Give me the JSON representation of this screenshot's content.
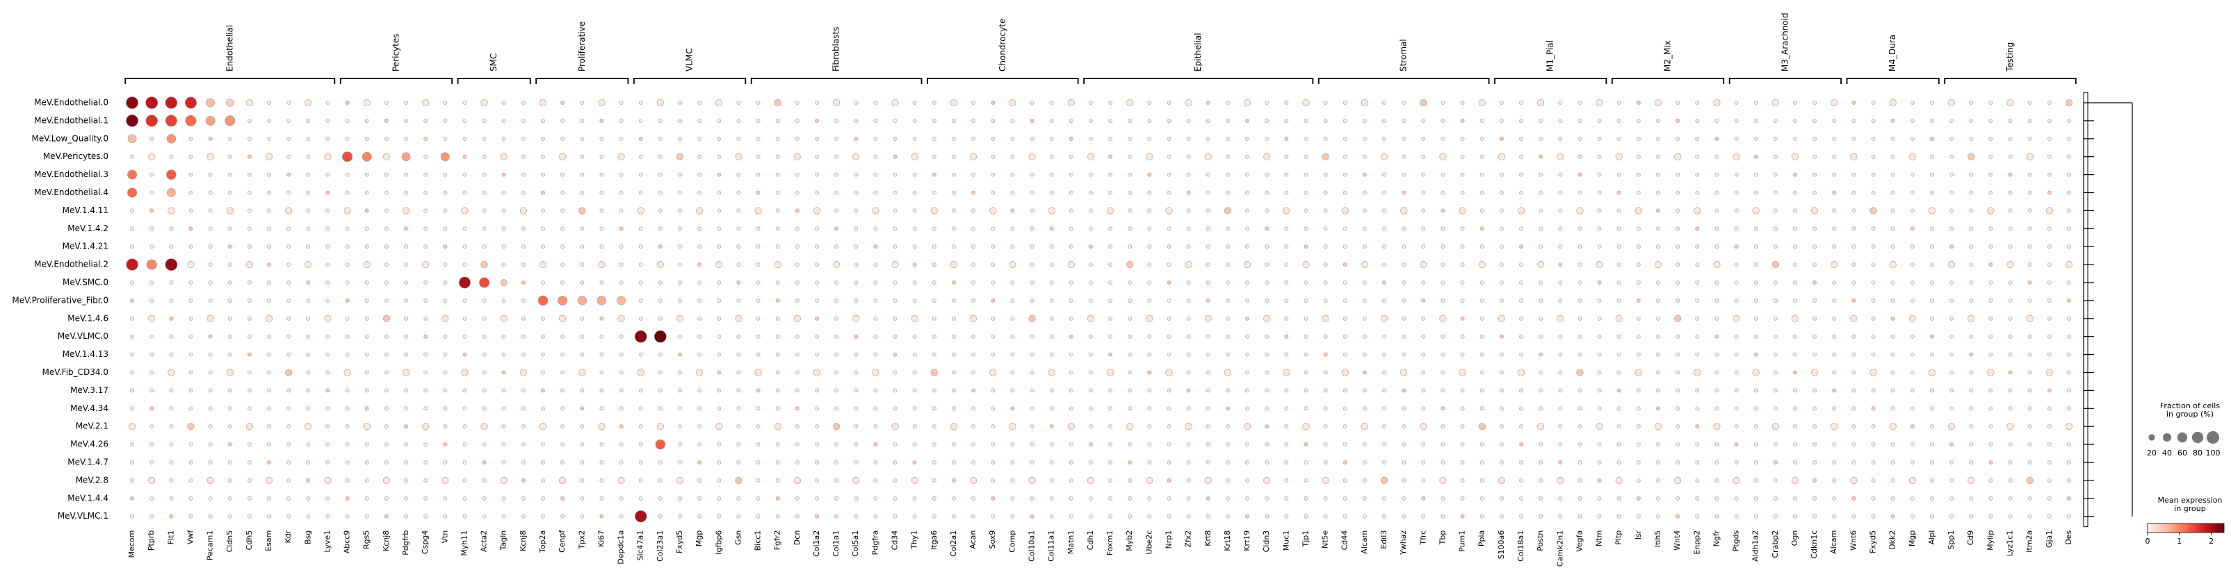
{
  "chart_data": {
    "type": "dotplot",
    "groups": [
      {
        "label": "Endothelial",
        "genes": [
          "Mecom",
          "Ptprb",
          "Flt1",
          "Vwf",
          "Pecam1",
          "Cldn5",
          "Cdh5",
          "Esam",
          "Kdr",
          "Bsg",
          "Lyve1"
        ]
      },
      {
        "label": "Pericytes",
        "genes": [
          "Abcc9",
          "Rgs5",
          "Kcnj8",
          "Pdgfrb",
          "Cspg4",
          "Vtn"
        ]
      },
      {
        "label": "SMC",
        "genes": [
          "Myh11",
          "Acta2",
          "Tagln",
          "Kcnj8"
        ]
      },
      {
        "label": "Proliferative",
        "genes": [
          "Top2a",
          "Cenpf",
          "Tpx2",
          "Ki67",
          "Depdc1a"
        ]
      },
      {
        "label": "VLMC",
        "genes": [
          "Slc47a1",
          "Col23a1",
          "Fxyd5",
          "Mgp",
          "Igfbp6",
          "Gsn"
        ]
      },
      {
        "label": "Fibroblasts",
        "genes": [
          "Bicc1",
          "Fgfr2",
          "Dcn",
          "Col1a2",
          "Col1a1",
          "Col5a1",
          "Pdgfra",
          "Cd34",
          "Thy1"
        ]
      },
      {
        "label": "Chondrocyte",
        "genes": [
          "Itga6",
          "Col2a1",
          "Acan",
          "Sox9",
          "Comp",
          "Col10a1",
          "Col11a1",
          "Matn1"
        ]
      },
      {
        "label": "Epithelial",
        "genes": [
          "Cdh1",
          "Foxm1",
          "Myb2",
          "Ube2c",
          "Nrp1",
          "Zfx2",
          "Krt8",
          "Krt18",
          "Krt19",
          "Cldn3",
          "Muc1",
          "Tjp1"
        ]
      },
      {
        "label": "Stromal",
        "genes": [
          "Nt5e",
          "Cd44",
          "Alcam",
          "Edil3",
          "Ywhaz",
          "Tfrc",
          "Tbp",
          "Pum1",
          "Ppia"
        ]
      },
      {
        "label": "M1_Pial",
        "genes": [
          "S100a6",
          "Col18a1",
          "Postn",
          "Camk2n1",
          "Vegfa",
          "Ntm"
        ]
      },
      {
        "label": "M2_Mix",
        "genes": [
          "Pltp",
          "Isr",
          "Itih5",
          "Wnt4",
          "Enpp2",
          "Ngfr"
        ]
      },
      {
        "label": "M3_Arachnoid",
        "genes": [
          "Ptgds",
          "Aldh1a2",
          "Crabp2",
          "Ogn",
          "Cdkn1c",
          "Alcam"
        ]
      },
      {
        "label": "M4_Dura",
        "genes": [
          "Wnt6",
          "Fxyd5",
          "Dkk2",
          "Mgp",
          "Alpl"
        ]
      },
      {
        "label": "Testing",
        "genes": [
          "Spp1",
          "Cd9",
          "Mylip",
          "Lyz1c1",
          "Itm2a",
          "Gja1",
          "Des"
        ]
      }
    ],
    "rows": [
      "MeV.Endothelial.0",
      "MeV.Endothelial.1",
      "MeV.Low_Quality.0",
      "MeV.Pericytes.0",
      "MeV.Endothelial.3",
      "MeV.Endothelial.4",
      "MeV.1.4.11",
      "MeV.1.4.2",
      "MeV.1.4.21",
      "MeV.Endothelial.2",
      "MeV.SMC.0",
      "MeV.Proliferative_Fibr.0",
      "MeV.1.4.6",
      "MeV.VLMC.0",
      "MeV.1.4.13",
      "MeV.Fib_CD34.0",
      "MeV.3.17",
      "MeV.4.34",
      "MeV.2.1",
      "MeV.4.26",
      "MeV.1.4.7",
      "MeV.2.8",
      "MeV.1.4.4",
      "MeV.VLMC.1"
    ],
    "highlights": [
      {
        "row": 0,
        "gene": 0,
        "expr": 2.2,
        "frac": 90
      },
      {
        "row": 0,
        "gene": 1,
        "expr": 1.9,
        "frac": 90
      },
      {
        "row": 0,
        "gene": 2,
        "expr": 1.8,
        "frac": 85
      },
      {
        "row": 0,
        "gene": 3,
        "expr": 1.7,
        "frac": 80
      },
      {
        "row": 0,
        "gene": 4,
        "expr": 0.6,
        "frac": 40
      },
      {
        "row": 0,
        "gene": 5,
        "expr": 0.4,
        "frac": 30
      },
      {
        "row": 1,
        "gene": 0,
        "expr": 2.3,
        "frac": 90
      },
      {
        "row": 1,
        "gene": 1,
        "expr": 1.6,
        "frac": 85
      },
      {
        "row": 1,
        "gene": 2,
        "expr": 1.5,
        "frac": 80
      },
      {
        "row": 1,
        "gene": 3,
        "expr": 1.2,
        "frac": 70
      },
      {
        "row": 1,
        "gene": 4,
        "expr": 0.8,
        "frac": 50
      },
      {
        "row": 1,
        "gene": 5,
        "expr": 0.9,
        "frac": 60
      },
      {
        "row": 2,
        "gene": 0,
        "expr": 0.6,
        "frac": 40
      },
      {
        "row": 2,
        "gene": 2,
        "expr": 0.9,
        "frac": 45
      },
      {
        "row": 3,
        "gene": 11,
        "expr": 1.4,
        "frac": 60
      },
      {
        "row": 3,
        "gene": 12,
        "expr": 1.0,
        "frac": 50
      },
      {
        "row": 3,
        "gene": 14,
        "expr": 0.8,
        "frac": 40
      },
      {
        "row": 3,
        "gene": 16,
        "expr": 0.9,
        "frac": 40
      },
      {
        "row": 4,
        "gene": 0,
        "expr": 1.1,
        "frac": 50
      },
      {
        "row": 4,
        "gene": 2,
        "expr": 1.3,
        "frac": 55
      },
      {
        "row": 5,
        "gene": 0,
        "expr": 1.2,
        "frac": 50
      },
      {
        "row": 5,
        "gene": 2,
        "expr": 0.7,
        "frac": 40
      },
      {
        "row": 9,
        "gene": 0,
        "expr": 1.8,
        "frac": 85
      },
      {
        "row": 9,
        "gene": 1,
        "expr": 1.0,
        "frac": 60
      },
      {
        "row": 9,
        "gene": 2,
        "expr": 2.1,
        "frac": 90
      },
      {
        "row": 10,
        "gene": 17,
        "expr": 2.0,
        "frac": 80
      },
      {
        "row": 10,
        "gene": 18,
        "expr": 1.4,
        "frac": 60
      },
      {
        "row": 10,
        "gene": 19,
        "expr": 0.5,
        "frac": 20
      },
      {
        "row": 11,
        "gene": 21,
        "expr": 1.2,
        "frac": 55
      },
      {
        "row": 11,
        "gene": 22,
        "expr": 0.9,
        "frac": 50
      },
      {
        "row": 11,
        "gene": 23,
        "expr": 0.7,
        "frac": 45
      },
      {
        "row": 11,
        "gene": 24,
        "expr": 0.7,
        "frac": 45
      },
      {
        "row": 11,
        "gene": 25,
        "expr": 0.6,
        "frac": 40
      },
      {
        "row": 13,
        "gene": 26,
        "expr": 2.2,
        "frac": 90
      },
      {
        "row": 13,
        "gene": 27,
        "expr": 2.4,
        "frac": 90
      },
      {
        "row": 19,
        "gene": 27,
        "expr": 1.3,
        "frac": 55
      },
      {
        "row": 23,
        "gene": 26,
        "expr": 2.0,
        "frac": 85
      }
    ],
    "colorbar": {
      "label": "Mean expression\nin group",
      "ticks": [
        0,
        1,
        2
      ],
      "range": [
        0,
        2.4
      ]
    },
    "size_legend": {
      "label": "Fraction of cells\nin group (%)",
      "values": [
        20,
        40,
        60,
        80,
        100
      ]
    },
    "cmap": [
      "#fff5f0",
      "#fcbba1",
      "#fb6a4a",
      "#cb181d",
      "#67000d"
    ]
  }
}
